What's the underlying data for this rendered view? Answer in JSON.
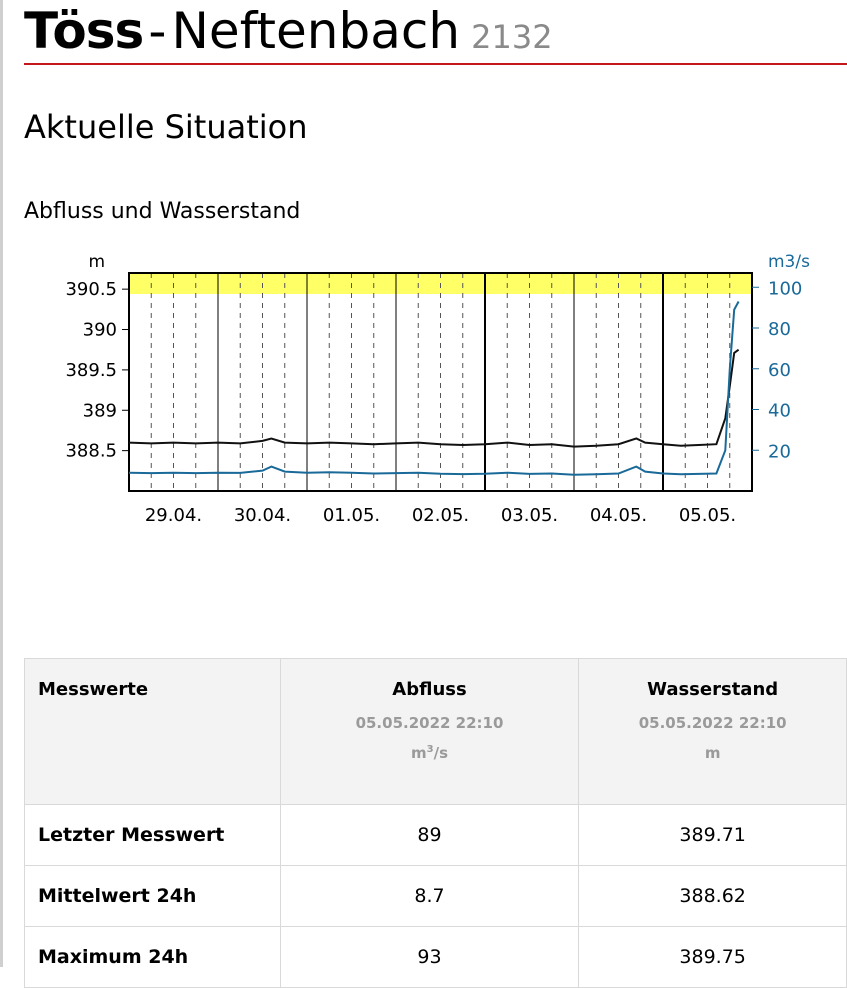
{
  "header": {
    "river": "Töss",
    "separator": "-",
    "place": "Neftenbach",
    "station_id": "2132"
  },
  "section_title": "Aktuelle Situation",
  "chart_title": "Abfluss und Wasserstand",
  "colors": {
    "accent_red": "#c4161c",
    "flow_series": "#1a6a99",
    "level_series": "#111111",
    "yellow_band": "#ffff66",
    "right_axis": "#1a6a99"
  },
  "chart_data": {
    "type": "line",
    "left_axis": {
      "unit": "m",
      "ticks": [
        "390.5",
        "390",
        "389.5",
        "389",
        "388.5"
      ],
      "range": [
        388.0,
        390.7
      ]
    },
    "right_axis": {
      "unit": "m3/s",
      "ticks": [
        "100",
        "80",
        "60",
        "40",
        "20"
      ],
      "range": [
        0,
        107
      ]
    },
    "x_ticks": [
      "29.04.",
      "30.04.",
      "01.05.",
      "02.05.",
      "03.05.",
      "04.05.",
      "05.05."
    ],
    "highlight_band": "yellow band at top",
    "series": [
      {
        "name": "Wasserstand",
        "axis": "left",
        "x": [
          0,
          0.25,
          0.5,
          0.75,
          1,
          1.25,
          1.5,
          1.6,
          1.75,
          2,
          2.25,
          2.5,
          2.75,
          3,
          3.25,
          3.5,
          3.75,
          4,
          4.25,
          4.5,
          4.75,
          5,
          5.25,
          5.5,
          5.7,
          5.8,
          6,
          6.2,
          6.4,
          6.6,
          6.7,
          6.75,
          6.8,
          6.85
        ],
        "y": [
          388.6,
          388.59,
          388.6,
          388.59,
          388.6,
          388.59,
          388.62,
          388.65,
          388.6,
          388.59,
          388.6,
          388.59,
          388.58,
          388.59,
          388.6,
          388.58,
          388.57,
          388.58,
          388.6,
          388.57,
          388.58,
          388.55,
          388.56,
          388.58,
          388.65,
          388.6,
          388.58,
          388.56,
          388.57,
          388.58,
          388.9,
          389.3,
          389.71,
          389.75
        ]
      },
      {
        "name": "Abfluss",
        "axis": "right",
        "x": [
          0,
          0.25,
          0.5,
          0.75,
          1,
          1.25,
          1.5,
          1.6,
          1.75,
          2,
          2.25,
          2.5,
          2.75,
          3,
          3.25,
          3.5,
          3.75,
          4,
          4.25,
          4.5,
          4.75,
          5,
          5.25,
          5.5,
          5.7,
          5.8,
          6,
          6.2,
          6.4,
          6.6,
          6.7,
          6.75,
          6.8,
          6.85
        ],
        "y": [
          9,
          8.8,
          9,
          8.8,
          9,
          8.9,
          10,
          12,
          9.5,
          9,
          9.2,
          9,
          8.6,
          8.8,
          9,
          8.5,
          8.3,
          8.5,
          9,
          8.4,
          8.6,
          8,
          8.2,
          8.6,
          12,
          9.5,
          8.6,
          8.2,
          8.4,
          8.6,
          20,
          60,
          89,
          93
        ]
      }
    ]
  },
  "table": {
    "header": {
      "label": "Messwerte",
      "col1": {
        "name": "Abfluss",
        "time": "05.05.2022 22:10",
        "unit_base": "m",
        "unit_sup": "3",
        "unit_tail": "/s"
      },
      "col2": {
        "name": "Wasserstand",
        "time": "05.05.2022 22:10",
        "unit": "m"
      }
    },
    "rows": [
      {
        "label": "Letzter Messwert",
        "abfluss": "89",
        "wasserstand": "389.71"
      },
      {
        "label": "Mittelwert 24h",
        "abfluss": "8.7",
        "wasserstand": "388.62"
      },
      {
        "label": "Maximum 24h",
        "abfluss": "93",
        "wasserstand": "389.75"
      }
    ]
  }
}
